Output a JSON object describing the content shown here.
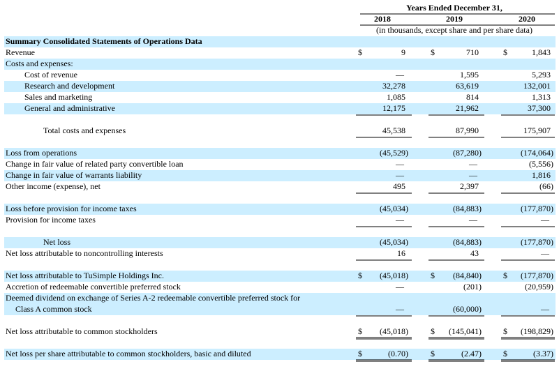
{
  "header": {
    "period": "Years Ended December 31,",
    "years": [
      "2018",
      "2019",
      "2020"
    ],
    "note": "(in thousands, except share and per share data)"
  },
  "table": {
    "title": "Summary Consolidated Statements of Operations Data",
    "rows": [
      {
        "label": "Revenue",
        "currency": [
          "$",
          "$",
          "$"
        ],
        "values": [
          "9",
          "710",
          "1,843"
        ]
      },
      {
        "label": "Costs and expenses:"
      },
      {
        "label": "Cost of revenue",
        "values": [
          "—",
          "1,595",
          "5,293"
        ]
      },
      {
        "label": "Research and development",
        "values": [
          "32,278",
          "63,619",
          "132,001"
        ]
      },
      {
        "label": "Sales and marketing",
        "values": [
          "1,085",
          "814",
          "1,313"
        ]
      },
      {
        "label": "General and administrative",
        "values": [
          "12,175",
          "21,962",
          "37,300"
        ]
      },
      {
        "label": "Total costs and expenses",
        "values": [
          "45,538",
          "87,990",
          "175,907"
        ]
      },
      {
        "label": "Loss from operations",
        "values": [
          "(45,529)",
          "(87,280)",
          "(174,064)"
        ]
      },
      {
        "label": "Change in fair value of related party convertible loan",
        "values": [
          "—",
          "—",
          "(5,556)"
        ]
      },
      {
        "label": "Change in fair value of warrants liability",
        "values": [
          "—",
          "—",
          "1,816"
        ]
      },
      {
        "label": "Other income (expense), net",
        "values": [
          "495",
          "2,397",
          "(66)"
        ]
      },
      {
        "label": "Loss before provision for income taxes",
        "values": [
          "(45,034)",
          "(84,883)",
          "(177,870)"
        ]
      },
      {
        "label": "Provision for income taxes",
        "values": [
          "—",
          "—",
          "—"
        ]
      },
      {
        "label": "Net loss",
        "values": [
          "(45,034)",
          "(84,883)",
          "(177,870)"
        ]
      },
      {
        "label": "Net loss attributable to noncontrolling interests",
        "values": [
          "16",
          "43",
          "—"
        ]
      },
      {
        "label": "Net loss attributable to TuSimple Holdings Inc.",
        "currency": [
          "$",
          "$",
          "$"
        ],
        "values": [
          "(45,018)",
          "(84,840)",
          "(177,870)"
        ]
      },
      {
        "label": "Accretion of redeemable convertible preferred stock",
        "values": [
          "—",
          "(201)",
          "(20,959)"
        ]
      },
      {
        "label": "Deemed dividend on exchange of Series A-2 redeemable convertible preferred stock for",
        "label_2": "Class A common stock",
        "values": [
          "—",
          "(60,000)",
          "—"
        ]
      },
      {
        "label": "Net loss attributable to common stockholders",
        "currency": [
          "$",
          "$",
          "$"
        ],
        "values": [
          "(45,018)",
          "(145,041)",
          "(198,829)"
        ]
      },
      {
        "label": "Net loss per share attributable to common stockholders, basic and diluted",
        "currency": [
          "$",
          "$",
          "$"
        ],
        "values": [
          "(0.70)",
          "(2.47)",
          "(3.37)"
        ]
      }
    ]
  }
}
